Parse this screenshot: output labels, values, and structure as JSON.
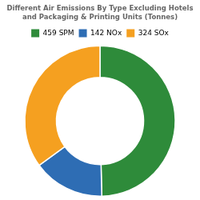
{
  "chart_data": {
    "type": "doughnut",
    "title": "Different Air Emissions By Type Excluding Hotels\nand Packaging & Printing Units (Tonnes)",
    "categories": [
      "SPM",
      "NOx",
      "SOx"
    ],
    "values": [
      459,
      142,
      324
    ],
    "colors": [
      "#2e8b3a",
      "#2e6db4",
      "#f5a020"
    ],
    "legend": "top"
  }
}
